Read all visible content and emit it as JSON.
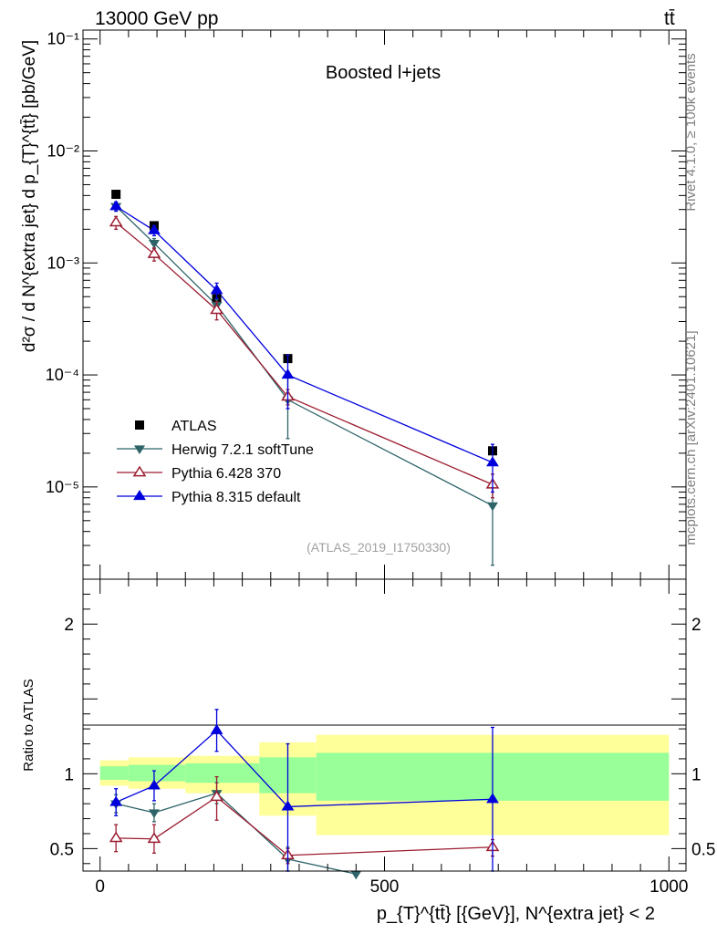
{
  "header": {
    "beam": "13000 GeV pp",
    "process": "tt̄"
  },
  "side": {
    "rivet": "Rivet 4.1.0, ≥ 100k events",
    "mcplots": "mcplots.cern.ch [arXiv:2401.10621]"
  },
  "chart_data": [
    {
      "type": "line",
      "title": "Boosted l+jets",
      "analysis": "(ATLAS_2019_I1750330)",
      "xlabel": "p_{T}^{tt̄} [{GeV}], N^{extra jet} < 2",
      "ylabel": "d²σ / d N^{extra jet} d p_{T}^{tt̄} [pb/GeV]",
      "yscale": "log",
      "xlim": [
        -30,
        1030
      ],
      "ylim": [
        1.5e-06,
        0.12
      ],
      "yticks": [
        "10⁻¹",
        "10⁻²",
        "10⁻³",
        "10⁻⁴",
        "10⁻⁵"
      ],
      "legend": [
        "ATLAS",
        "Herwig 7.2.1 softTune",
        "Pythia 6.428 370",
        "Pythia 8.315 default"
      ],
      "series": [
        {
          "name": "ATLAS",
          "color": "#000000",
          "marker": "square",
          "x": [
            28,
            95,
            205,
            330,
            690
          ],
          "y": [
            0.0041,
            0.00215,
            0.00048,
            0.00014,
            2.1e-05
          ]
        },
        {
          "name": "Herwig 7.2.1 softTune",
          "color": "#2e6468",
          "marker": "tri-down",
          "x": [
            28,
            95,
            205,
            330,
            690
          ],
          "y": [
            0.0032,
            0.0015,
            0.00042,
            6e-05,
            6.8e-06
          ],
          "err_lo": [
            0.0029,
            0.00135,
            0.00036,
            2.7e-05,
            2e-06
          ],
          "err_hi": [
            0.0035,
            0.00165,
            0.00047,
            9.5e-05,
            1.1e-05
          ]
        },
        {
          "name": "Pythia 6.428 370",
          "color": "#9b1c31",
          "marker": "tri-up-open",
          "x": [
            28,
            95,
            205,
            330,
            690
          ],
          "y": [
            0.0023,
            0.0012,
            0.00038,
            6.4e-05,
            1.05e-05
          ],
          "err_lo": [
            0.002,
            0.00104,
            0.00031,
            5.4e-05,
            8e-06
          ],
          "err_hi": [
            0.0026,
            0.00136,
            0.00045,
            7.4e-05,
            1.3e-05
          ]
        },
        {
          "name": "Pythia 8.315 default",
          "color": "#0000dd",
          "marker": "tri-up",
          "x": [
            28,
            95,
            205,
            330,
            690
          ],
          "y": [
            0.0032,
            0.00195,
            0.00057,
            0.0001,
            1.65e-05
          ],
          "err_lo": [
            0.0029,
            0.00175,
            0.00048,
            5e-05,
            9e-06
          ],
          "err_hi": [
            0.0035,
            0.00215,
            0.00066,
            0.00015,
            2.4e-05
          ]
        }
      ]
    },
    {
      "type": "line",
      "ylabel": "Ratio to ATLAS",
      "xlim": [
        -30,
        1030
      ],
      "ylim": [
        0.35,
        2.3
      ],
      "xticks": [
        "0",
        "500",
        "1000"
      ],
      "yticks": [
        "0.5",
        "1",
        "2"
      ],
      "bands": {
        "edges": [
          0,
          50,
          150,
          280,
          380,
          1000
        ],
        "yellow_lo": [
          0.92,
          0.9,
          0.87,
          0.72,
          0.59
        ],
        "yellow_hi": [
          1.09,
          1.11,
          1.12,
          1.21,
          1.26
        ],
        "green_lo": [
          0.96,
          0.95,
          0.94,
          0.87,
          0.82
        ],
        "green_hi": [
          1.05,
          1.06,
          1.07,
          1.11,
          1.14
        ]
      },
      "series": [
        {
          "name": "Herwig 7.2.1 softTune",
          "color": "#2e6468",
          "marker": "tri-down",
          "x": [
            28,
            95,
            205,
            330,
            450
          ],
          "y": [
            0.8,
            0.74,
            0.87,
            0.43,
            0.33
          ],
          "err_lo": [
            0.74,
            0.68,
            0.8,
            0.35,
            0.33
          ],
          "err_hi": [
            0.86,
            0.8,
            0.94,
            0.51,
            0.33
          ]
        },
        {
          "name": "Pythia 6.428 370",
          "color": "#9b1c31",
          "marker": "tri-up-open",
          "x": [
            28,
            95,
            205,
            330,
            690
          ],
          "y": [
            0.57,
            0.565,
            0.845,
            0.455,
            0.51
          ],
          "err_lo": [
            0.48,
            0.47,
            0.69,
            0.4,
            0.45
          ],
          "err_hi": [
            0.66,
            0.66,
            0.98,
            0.5,
            0.56
          ]
        },
        {
          "name": "Pythia 8.315 default",
          "color": "#0000dd",
          "marker": "tri-up",
          "x": [
            28,
            95,
            205,
            330,
            690
          ],
          "y": [
            0.81,
            0.92,
            1.29,
            0.78,
            0.83
          ],
          "err_lo": [
            0.72,
            0.82,
            1.15,
            0.35,
            0.35
          ],
          "err_hi": [
            0.9,
            1.02,
            1.43,
            1.2,
            1.31
          ]
        }
      ]
    }
  ]
}
